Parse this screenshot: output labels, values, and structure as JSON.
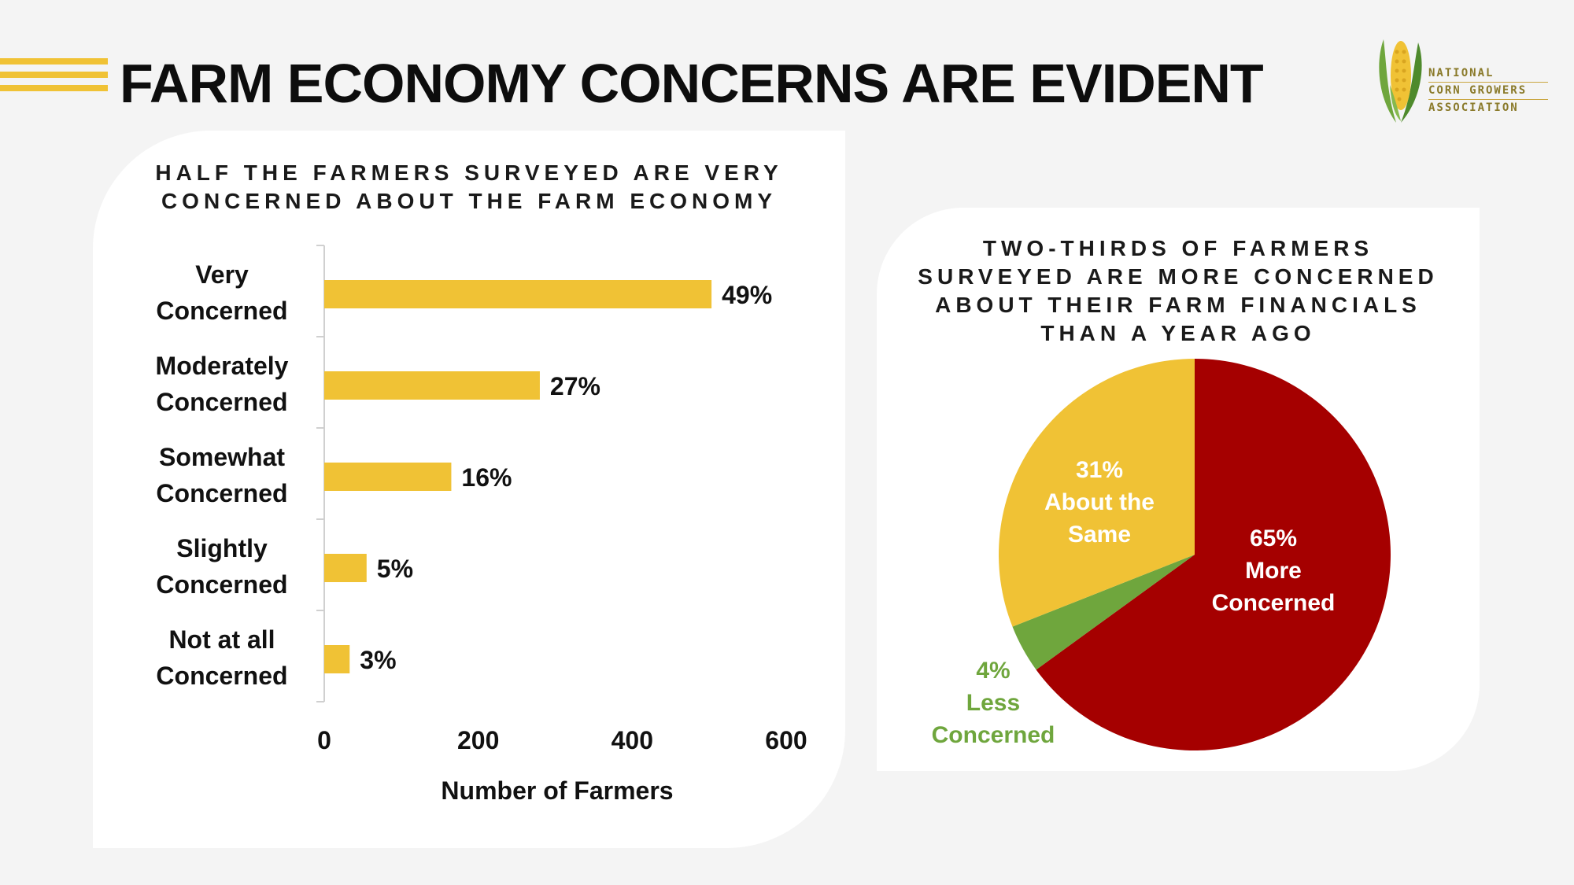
{
  "page": {
    "title": "FARM ECONOMY CONCERNS ARE EVIDENT",
    "accent_color": "#f0c235"
  },
  "logo": {
    "icon": "corn-icon",
    "lines": [
      "NATIONAL",
      "CORN GROWERS",
      "ASSOCIATION"
    ]
  },
  "chart_data": [
    {
      "type": "bar",
      "orientation": "horizontal",
      "title_lines": [
        "HALF THE FARMERS SURVEYED ARE VERY",
        "CONCERNED ABOUT THE FARM ECONOMY"
      ],
      "categories": [
        [
          "Very",
          "Concerned"
        ],
        [
          "Moderately",
          "Concerned"
        ],
        [
          "Somewhat",
          "Concerned"
        ],
        [
          "Slightly",
          "Concerned"
        ],
        [
          "Not at all",
          "Concerned"
        ]
      ],
      "values": [
        503,
        280,
        165,
        55,
        33
      ],
      "data_labels": [
        "49%",
        "27%",
        "16%",
        "5%",
        "3%"
      ],
      "xlabel": "Number of Farmers",
      "xlim": [
        0,
        600
      ],
      "xticks": [
        0,
        200,
        400,
        600
      ],
      "grid": false,
      "color": "#f0c235"
    },
    {
      "type": "pie",
      "title_lines": [
        "TWO-THIRDS OF FARMERS",
        "SURVEYED ARE MORE CONCERNED",
        "ABOUT THEIR FARM FINANCIALS",
        "THAN A YEAR AGO"
      ],
      "slices": [
        {
          "value": 65,
          "label_lines": [
            "65%",
            "More",
            "Concerned"
          ],
          "color": "#a50000",
          "label_color": "#ffffff"
        },
        {
          "value": 4,
          "label_lines": [
            "4%",
            "Less",
            "Concerned"
          ],
          "color": "#6fa63d",
          "label_color": "#6fa63d"
        },
        {
          "value": 31,
          "label_lines": [
            "31%",
            "About the",
            "Same"
          ],
          "color": "#f0c235",
          "label_color": "#ffffff"
        }
      ]
    }
  ]
}
